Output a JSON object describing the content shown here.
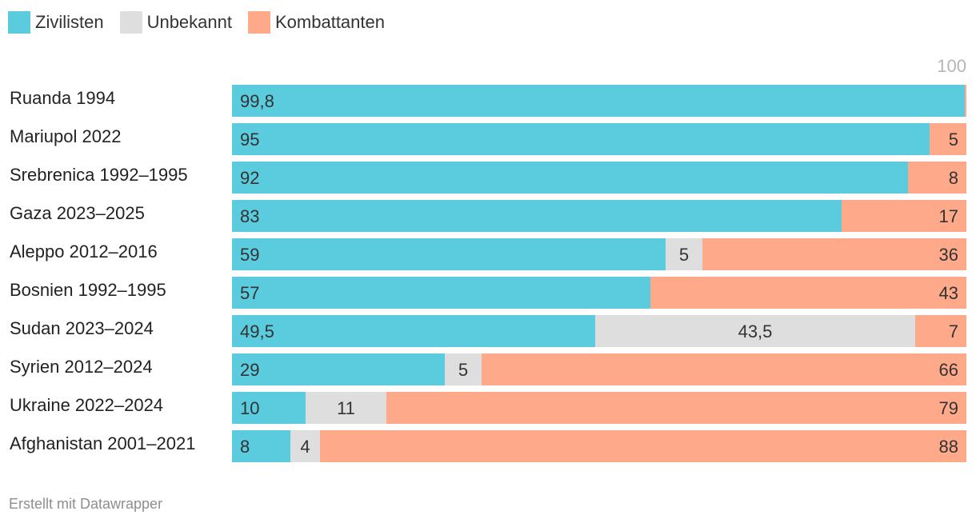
{
  "chart_data": {
    "type": "bar",
    "orientation": "horizontal",
    "stacked": true,
    "title": "",
    "xlabel": "",
    "ylabel": "",
    "xlim": [
      0,
      100
    ],
    "axis_max_label": "100",
    "legend_position": "top-left",
    "categories": [
      "Ruanda 1994",
      "Mariupol 2022",
      "Srebrenica 1992–1995",
      "Gaza 2023–2025",
      "Aleppo 2012–2016",
      "Bosnien 1992–1995",
      "Sudan 2023–2024",
      "Syrien 2012–2024",
      "Ukraine 2022–2024",
      "Afghanistan 2001–2021"
    ],
    "series": [
      {
        "name": "Zivilisten",
        "color": "#5bcbde",
        "values": [
          99.8,
          95,
          92,
          83,
          59,
          57,
          49.5,
          29,
          10,
          8
        ],
        "labels": [
          "99,8",
          "95",
          "92",
          "83",
          "59",
          "57",
          "49,5",
          "29",
          "10",
          "8"
        ]
      },
      {
        "name": "Unbekannt",
        "color": "#dedede",
        "values": [
          0,
          0,
          0,
          0,
          5,
          0,
          43.5,
          5,
          11,
          4
        ],
        "labels": [
          "",
          "",
          "",
          "",
          "5",
          "",
          "43,5",
          "5",
          "11",
          "4"
        ]
      },
      {
        "name": "Kombattanten",
        "color": "#ffa98b",
        "values": [
          0.2,
          5,
          8,
          17,
          36,
          43,
          7,
          66,
          79,
          88
        ],
        "labels": [
          "",
          "5",
          "8",
          "17",
          "36",
          "43",
          "7",
          "66",
          "79",
          "88"
        ]
      }
    ]
  },
  "footer": {
    "credit": "Erstellt mit Datawrapper"
  }
}
